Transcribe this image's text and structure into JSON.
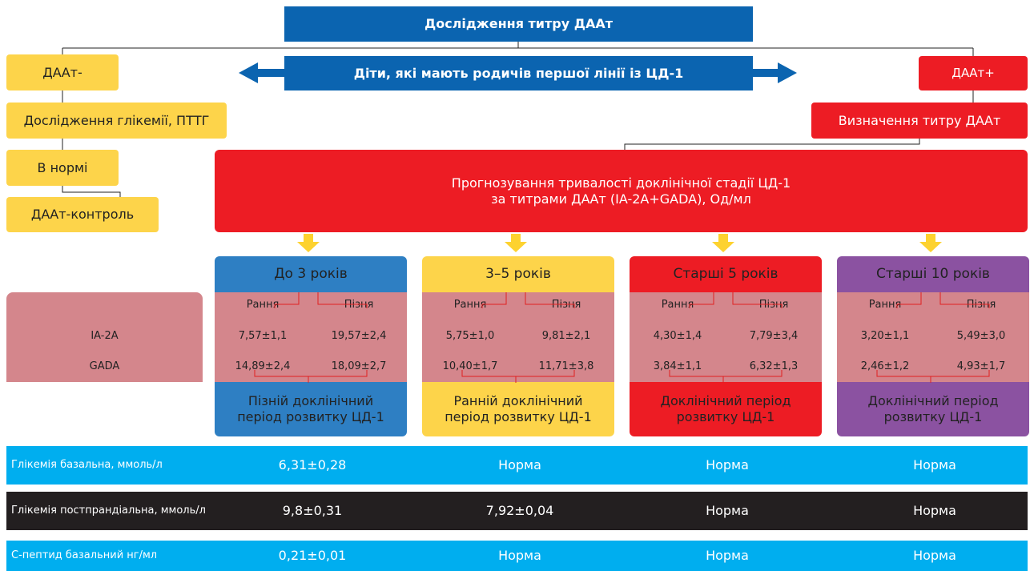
{
  "title": "Дослідження титру ДААт",
  "center": "Діти, які мають родичів першої лінії із ЦД-1",
  "negative": {
    "steps": [
      "ДААт-",
      "Дослідження глікемії, ПТТГ",
      "В нормі",
      "ДААт-контроль"
    ]
  },
  "positive": {
    "steps": [
      "ДААт+",
      "Визначення титру ДААт"
    ]
  },
  "forecast": {
    "lines": [
      "Прогнозування тривалості доклінічної стадії ЦД-1",
      "за титрами ДААт (IA-2A+GADA), Од/мл"
    ]
  },
  "markers": [
    "IA-2A",
    "GADA"
  ],
  "groups": [
    {
      "title": "До 3 років",
      "early": "Рання",
      "late": "Пізня",
      "ia2a": [
        "7,57±1,1",
        "19,57±2,4"
      ],
      "gada": [
        "14,89±2,4",
        "18,09±2,7"
      ],
      "period": [
        "Пізній доклінічний",
        "період розвитку ЦД-1"
      ]
    },
    {
      "title": "3–5 років",
      "early": "Рання",
      "late": "Пізня",
      "ia2a": [
        "5,75±1,0",
        "9,81±2,1"
      ],
      "gada": [
        "10,40±1,7",
        "11,71±3,8"
      ],
      "period": [
        "Ранній доклінічний",
        "період розвитку ЦД-1"
      ]
    },
    {
      "title": "Старші 5 років",
      "early": "Рання",
      "late": "Пізня",
      "ia2a": [
        "4,30±1,4",
        "7,79±3,4"
      ],
      "gada": [
        "3,84±1,1",
        "6,32±1,3"
      ],
      "period": [
        "Доклінічний період",
        "розвитку ЦД-1"
      ]
    },
    {
      "title": "Старші 10 років",
      "early": "Рання",
      "late": "Пізня",
      "ia2a": [
        "3,20±1,1",
        "5,49±3,0"
      ],
      "gada": [
        "2,46±1,2",
        "4,93±1,7"
      ],
      "period": [
        "Доклінічний період",
        "розвитку ЦД-1"
      ]
    }
  ],
  "rows": [
    {
      "label": "Глікемія базальна, ммоль/л",
      "values": [
        "6,31±0,28",
        "Норма",
        "Норма",
        "Норма"
      ]
    },
    {
      "label": "Глікемія постпрандіальна, ммоль/л",
      "values": [
        "9,8±0,31",
        "7,92±0,04",
        "Норма",
        "Норма"
      ]
    },
    {
      "label": "С-пептид базальний  нг/мл",
      "values": [
        "0,21±0,01",
        "Норма",
        "Норма",
        "Норма"
      ]
    }
  ]
}
